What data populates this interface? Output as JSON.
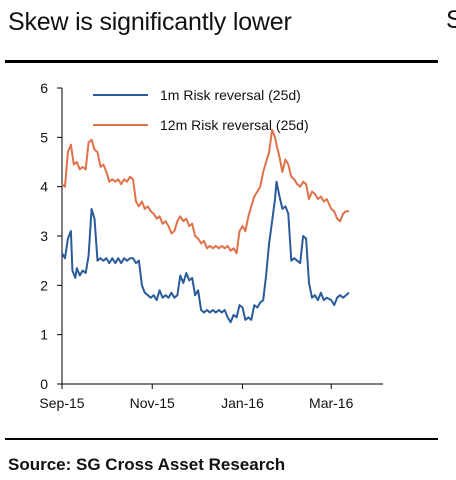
{
  "header": {
    "title": "Skew is significantly lower",
    "cut_letter": "S"
  },
  "footer": {
    "source": "Source: SG Cross Asset Research"
  },
  "chart_data": {
    "type": "line",
    "ylim": [
      0,
      6
    ],
    "yticks": [
      0,
      1,
      2,
      3,
      4,
      5,
      6
    ],
    "x_range": [
      "2015-09-01",
      "2016-04-05"
    ],
    "xticks": [
      {
        "label": "Sep-15",
        "date": "2015-09-01"
      },
      {
        "label": "Nov-15",
        "date": "2015-11-01"
      },
      {
        "label": "Jan-16",
        "date": "2016-01-01"
      },
      {
        "label": "Mar-16",
        "date": "2016-03-01"
      }
    ],
    "legend_position": "top-center",
    "series": [
      {
        "name": "1m Risk reversal (25d)",
        "color": "#2a5b9a",
        "points": [
          [
            "2015-09-01",
            2.65
          ],
          [
            "2015-09-03",
            2.55
          ],
          [
            "2015-09-05",
            2.95
          ],
          [
            "2015-09-07",
            3.1
          ],
          [
            "2015-09-08",
            2.3
          ],
          [
            "2015-09-10",
            2.15
          ],
          [
            "2015-09-11",
            2.35
          ],
          [
            "2015-09-13",
            2.2
          ],
          [
            "2015-09-15",
            2.3
          ],
          [
            "2015-09-17",
            2.25
          ],
          [
            "2015-09-19",
            2.6
          ],
          [
            "2015-09-21",
            3.55
          ],
          [
            "2015-09-23",
            3.35
          ],
          [
            "2015-09-25",
            2.5
          ],
          [
            "2015-09-27",
            2.55
          ],
          [
            "2015-09-29",
            2.5
          ],
          [
            "2015-10-01",
            2.55
          ],
          [
            "2015-10-03",
            2.45
          ],
          [
            "2015-10-05",
            2.55
          ],
          [
            "2015-10-07",
            2.45
          ],
          [
            "2015-10-09",
            2.55
          ],
          [
            "2015-10-11",
            2.45
          ],
          [
            "2015-10-13",
            2.55
          ],
          [
            "2015-10-15",
            2.5
          ],
          [
            "2015-10-17",
            2.55
          ],
          [
            "2015-10-19",
            2.55
          ],
          [
            "2015-10-21",
            2.45
          ],
          [
            "2015-10-23",
            2.5
          ],
          [
            "2015-10-25",
            2.0
          ],
          [
            "2015-10-27",
            1.85
          ],
          [
            "2015-10-29",
            1.8
          ],
          [
            "2015-10-31",
            1.75
          ],
          [
            "2015-11-02",
            1.8
          ],
          [
            "2015-11-04",
            1.7
          ],
          [
            "2015-11-06",
            1.9
          ],
          [
            "2015-11-08",
            1.75
          ],
          [
            "2015-11-10",
            1.8
          ],
          [
            "2015-11-12",
            1.75
          ],
          [
            "2015-11-14",
            1.85
          ],
          [
            "2015-11-16",
            1.75
          ],
          [
            "2015-11-18",
            1.8
          ],
          [
            "2015-11-20",
            2.2
          ],
          [
            "2015-11-22",
            2.05
          ],
          [
            "2015-11-24",
            2.25
          ],
          [
            "2015-11-26",
            2.1
          ],
          [
            "2015-11-28",
            2.15
          ],
          [
            "2015-11-30",
            1.8
          ],
          [
            "2015-12-02",
            1.9
          ],
          [
            "2015-12-04",
            1.5
          ],
          [
            "2015-12-06",
            1.45
          ],
          [
            "2015-12-08",
            1.5
          ],
          [
            "2015-12-10",
            1.45
          ],
          [
            "2015-12-12",
            1.5
          ],
          [
            "2015-12-14",
            1.45
          ],
          [
            "2015-12-16",
            1.5
          ],
          [
            "2015-12-18",
            1.45
          ],
          [
            "2015-12-20",
            1.5
          ],
          [
            "2015-12-22",
            1.35
          ],
          [
            "2015-12-24",
            1.25
          ],
          [
            "2015-12-26",
            1.4
          ],
          [
            "2015-12-28",
            1.35
          ],
          [
            "2015-12-30",
            1.6
          ],
          [
            "2016-01-01",
            1.55
          ],
          [
            "2016-01-03",
            1.3
          ],
          [
            "2016-01-05",
            1.35
          ],
          [
            "2016-01-07",
            1.3
          ],
          [
            "2016-01-09",
            1.6
          ],
          [
            "2016-01-11",
            1.55
          ],
          [
            "2016-01-13",
            1.65
          ],
          [
            "2016-01-15",
            1.7
          ],
          [
            "2016-01-17",
            2.2
          ],
          [
            "2016-01-19",
            2.85
          ],
          [
            "2016-01-21",
            3.3
          ],
          [
            "2016-01-23",
            3.75
          ],
          [
            "2016-01-24",
            4.1
          ],
          [
            "2016-01-26",
            3.8
          ],
          [
            "2016-01-28",
            3.55
          ],
          [
            "2016-01-30",
            3.6
          ],
          [
            "2016-02-01",
            3.45
          ],
          [
            "2016-02-03",
            2.5
          ],
          [
            "2016-02-05",
            2.55
          ],
          [
            "2016-02-07",
            2.5
          ],
          [
            "2016-02-09",
            2.45
          ],
          [
            "2016-02-11",
            3.0
          ],
          [
            "2016-02-13",
            2.95
          ],
          [
            "2016-02-15",
            2.05
          ],
          [
            "2016-02-17",
            1.75
          ],
          [
            "2016-02-19",
            1.8
          ],
          [
            "2016-02-21",
            1.7
          ],
          [
            "2016-02-23",
            1.85
          ],
          [
            "2016-02-25",
            1.7
          ],
          [
            "2016-02-27",
            1.75
          ],
          [
            "2016-03-01",
            1.7
          ],
          [
            "2016-03-03",
            1.6
          ],
          [
            "2016-03-05",
            1.75
          ],
          [
            "2016-03-07",
            1.8
          ],
          [
            "2016-03-09",
            1.75
          ],
          [
            "2016-03-11",
            1.8
          ],
          [
            "2016-03-13",
            1.85
          ]
        ]
      },
      {
        "name": "12m Risk reversal (25d)",
        "color": "#e0724a",
        "points": [
          [
            "2015-09-01",
            4.05
          ],
          [
            "2015-09-03",
            4.0
          ],
          [
            "2015-09-05",
            4.7
          ],
          [
            "2015-09-07",
            4.85
          ],
          [
            "2015-09-09",
            4.45
          ],
          [
            "2015-09-11",
            4.5
          ],
          [
            "2015-09-13",
            4.35
          ],
          [
            "2015-09-15",
            4.4
          ],
          [
            "2015-09-17",
            4.35
          ],
          [
            "2015-09-19",
            4.9
          ],
          [
            "2015-09-21",
            4.95
          ],
          [
            "2015-09-23",
            4.75
          ],
          [
            "2015-09-25",
            4.7
          ],
          [
            "2015-09-27",
            4.4
          ],
          [
            "2015-09-29",
            4.45
          ],
          [
            "2015-10-01",
            4.3
          ],
          [
            "2015-10-03",
            4.1
          ],
          [
            "2015-10-05",
            4.15
          ],
          [
            "2015-10-07",
            4.1
          ],
          [
            "2015-10-09",
            4.15
          ],
          [
            "2015-10-11",
            4.05
          ],
          [
            "2015-10-13",
            4.15
          ],
          [
            "2015-10-15",
            4.1
          ],
          [
            "2015-10-17",
            4.2
          ],
          [
            "2015-10-19",
            4.15
          ],
          [
            "2015-10-21",
            3.7
          ],
          [
            "2015-10-23",
            3.6
          ],
          [
            "2015-10-25",
            3.7
          ],
          [
            "2015-10-27",
            3.55
          ],
          [
            "2015-10-29",
            3.6
          ],
          [
            "2015-10-31",
            3.5
          ],
          [
            "2015-11-02",
            3.45
          ],
          [
            "2015-11-04",
            3.35
          ],
          [
            "2015-11-06",
            3.4
          ],
          [
            "2015-11-08",
            3.25
          ],
          [
            "2015-11-10",
            3.3
          ],
          [
            "2015-11-12",
            3.2
          ],
          [
            "2015-11-14",
            3.05
          ],
          [
            "2015-11-16",
            3.1
          ],
          [
            "2015-11-18",
            3.3
          ],
          [
            "2015-11-20",
            3.4
          ],
          [
            "2015-11-22",
            3.3
          ],
          [
            "2015-11-24",
            3.35
          ],
          [
            "2015-11-26",
            3.2
          ],
          [
            "2015-11-28",
            3.25
          ],
          [
            "2015-11-30",
            3.0
          ],
          [
            "2015-12-02",
            2.95
          ],
          [
            "2015-12-04",
            2.85
          ],
          [
            "2015-12-06",
            2.9
          ],
          [
            "2015-12-08",
            2.75
          ],
          [
            "2015-12-10",
            2.8
          ],
          [
            "2015-12-12",
            2.75
          ],
          [
            "2015-12-14",
            2.8
          ],
          [
            "2015-12-16",
            2.75
          ],
          [
            "2015-12-18",
            2.8
          ],
          [
            "2015-12-20",
            2.75
          ],
          [
            "2015-12-22",
            2.8
          ],
          [
            "2015-12-24",
            2.7
          ],
          [
            "2015-12-26",
            2.75
          ],
          [
            "2015-12-28",
            2.65
          ],
          [
            "2015-12-30",
            3.1
          ],
          [
            "2016-01-01",
            3.2
          ],
          [
            "2016-01-03",
            3.1
          ],
          [
            "2016-01-05",
            3.4
          ],
          [
            "2016-01-07",
            3.6
          ],
          [
            "2016-01-09",
            3.8
          ],
          [
            "2016-01-11",
            3.9
          ],
          [
            "2016-01-13",
            4.0
          ],
          [
            "2016-01-15",
            4.3
          ],
          [
            "2016-01-17",
            4.5
          ],
          [
            "2016-01-19",
            4.7
          ],
          [
            "2016-01-21",
            5.15
          ],
          [
            "2016-01-23",
            5.0
          ],
          [
            "2016-01-24",
            4.85
          ],
          [
            "2016-01-26",
            4.6
          ],
          [
            "2016-01-28",
            4.3
          ],
          [
            "2016-01-30",
            4.55
          ],
          [
            "2016-02-01",
            4.45
          ],
          [
            "2016-02-03",
            4.2
          ],
          [
            "2016-02-05",
            4.15
          ],
          [
            "2016-02-07",
            4.05
          ],
          [
            "2016-02-09",
            4.0
          ],
          [
            "2016-02-11",
            4.1
          ],
          [
            "2016-02-13",
            4.05
          ],
          [
            "2016-02-15",
            3.75
          ],
          [
            "2016-02-17",
            3.9
          ],
          [
            "2016-02-19",
            3.85
          ],
          [
            "2016-02-21",
            3.75
          ],
          [
            "2016-02-23",
            3.8
          ],
          [
            "2016-02-25",
            3.7
          ],
          [
            "2016-02-27",
            3.75
          ],
          [
            "2016-03-01",
            3.55
          ],
          [
            "2016-03-03",
            3.5
          ],
          [
            "2016-03-05",
            3.35
          ],
          [
            "2016-03-07",
            3.3
          ],
          [
            "2016-03-09",
            3.45
          ],
          [
            "2016-03-11",
            3.5
          ],
          [
            "2016-03-13",
            3.5
          ]
        ]
      }
    ]
  }
}
